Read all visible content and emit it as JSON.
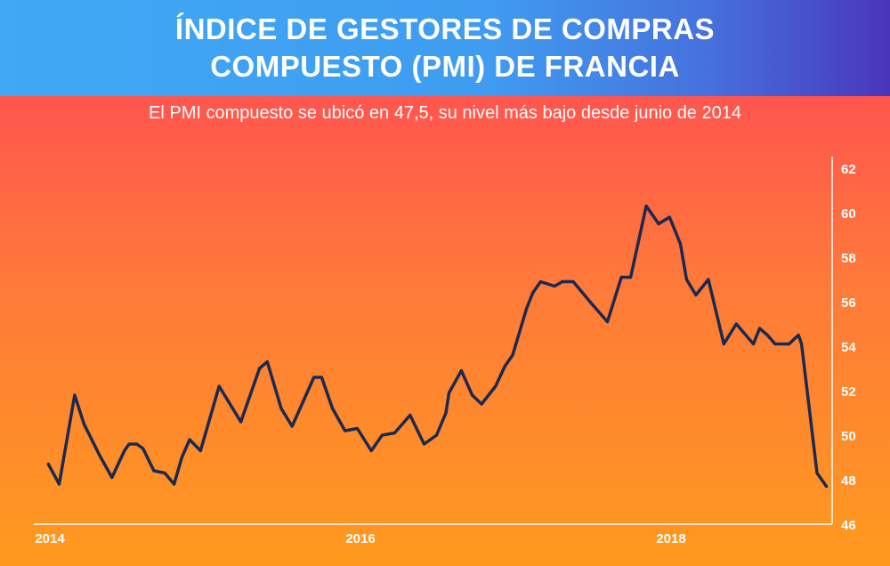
{
  "header": {
    "title_line1": "ÍNDICE DE GESTORES DE COMPRAS",
    "title_line2": "COMPUESTO (PMI) DE FRANCIA"
  },
  "subtitle": "El PMI compuesto se ubicó en 47,5, su nivel más bajo desde junio de 2014",
  "colors": {
    "line": "#1c2a4f",
    "axis": "#ffffff",
    "header_left": "#3fa9f5",
    "header_right": "#4a35bb",
    "bg_top": "#ff4d52",
    "bg_bottom": "#ff9a1e"
  },
  "chart_data": {
    "type": "line",
    "title": "ÍNDICE DE GESTORES DE COMPRAS COMPUESTO (PMI) DE FRANCIA",
    "xlabel": "",
    "ylabel": "",
    "ylim": [
      46,
      62
    ],
    "xlim": [
      2014,
      2019
    ],
    "yticks": [
      "46",
      "48",
      "50",
      "52",
      "54",
      "56",
      "58",
      "60",
      "62"
    ],
    "yticks_values": [
      46,
      48,
      50,
      52,
      54,
      56,
      58,
      60,
      62
    ],
    "xticks": [
      "2014",
      "2016",
      "2018"
    ],
    "xticks_values": [
      2014,
      2016,
      2018
    ],
    "grid": false,
    "legend": "none",
    "series": [
      {
        "name": "PMI compuesto",
        "points": [
          [
            2013.99,
            48.7
          ],
          [
            2014.06,
            47.8
          ],
          [
            2014.16,
            51.8
          ],
          [
            2014.22,
            50.5
          ],
          [
            2014.32,
            49.1
          ],
          [
            2014.4,
            48.1
          ],
          [
            2014.48,
            49.3
          ],
          [
            2014.51,
            49.6
          ],
          [
            2014.56,
            49.6
          ],
          [
            2014.6,
            49.4
          ],
          [
            2014.67,
            48.4
          ],
          [
            2014.74,
            48.3
          ],
          [
            2014.8,
            47.8
          ],
          [
            2014.85,
            49.0
          ],
          [
            2014.9,
            49.8
          ],
          [
            2014.97,
            49.3
          ],
          [
            2015.09,
            52.2
          ],
          [
            2015.23,
            50.6
          ],
          [
            2015.35,
            53.0
          ],
          [
            2015.4,
            53.3
          ],
          [
            2015.49,
            51.2
          ],
          [
            2015.56,
            50.4
          ],
          [
            2015.7,
            52.6
          ],
          [
            2015.75,
            52.6
          ],
          [
            2015.82,
            51.2
          ],
          [
            2015.9,
            50.2
          ],
          [
            2015.98,
            50.3
          ],
          [
            2016.07,
            49.3
          ],
          [
            2016.14,
            50.0
          ],
          [
            2016.22,
            50.1
          ],
          [
            2016.32,
            50.9
          ],
          [
            2016.41,
            49.6
          ],
          [
            2016.49,
            50.0
          ],
          [
            2016.55,
            51.0
          ],
          [
            2016.57,
            51.9
          ],
          [
            2016.65,
            52.9
          ],
          [
            2016.72,
            51.8
          ],
          [
            2016.78,
            51.4
          ],
          [
            2016.87,
            52.2
          ],
          [
            2016.93,
            53.1
          ],
          [
            2016.98,
            53.6
          ],
          [
            2017.07,
            55.7
          ],
          [
            2017.11,
            56.4
          ],
          [
            2017.16,
            56.9
          ],
          [
            2017.25,
            56.7
          ],
          [
            2017.3,
            56.9
          ],
          [
            2017.37,
            56.9
          ],
          [
            2017.49,
            55.9
          ],
          [
            2017.59,
            55.1
          ],
          [
            2017.68,
            57.1
          ],
          [
            2017.74,
            57.1
          ],
          [
            2017.84,
            60.3
          ],
          [
            2017.92,
            59.5
          ],
          [
            2017.99,
            59.8
          ],
          [
            2018.06,
            58.6
          ],
          [
            2018.1,
            57.0
          ],
          [
            2018.16,
            56.3
          ],
          [
            2018.24,
            57.0
          ],
          [
            2018.34,
            54.1
          ],
          [
            2018.42,
            55.0
          ],
          [
            2018.53,
            54.1
          ],
          [
            2018.57,
            54.8
          ],
          [
            2018.62,
            54.5
          ],
          [
            2018.67,
            54.1
          ],
          [
            2018.76,
            54.1
          ],
          [
            2018.82,
            54.5
          ],
          [
            2018.84,
            54.1
          ],
          [
            2018.94,
            48.3
          ],
          [
            2019.0,
            47.7
          ]
        ]
      }
    ]
  }
}
